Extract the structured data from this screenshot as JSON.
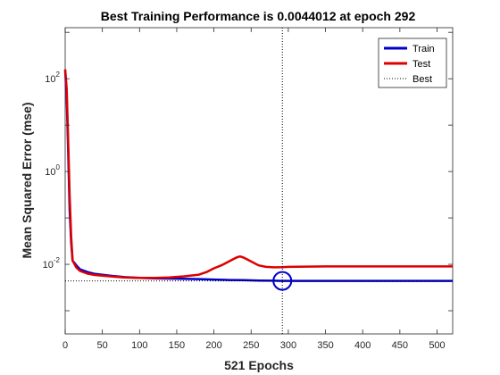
{
  "chart_data": {
    "type": "line",
    "title": "Best Training Performance is 0.0044012 at epoch 292",
    "xlabel": "521 Epochs",
    "ylabel": "Mean Squared Error  (mse)",
    "xlim": [
      0,
      521
    ],
    "ylim_log10": [
      -3.5,
      3.1
    ],
    "y_scale": "log",
    "grid": false,
    "legend_position": "top-right",
    "x_ticks": [
      0,
      50,
      100,
      150,
      200,
      250,
      300,
      350,
      400,
      450,
      500
    ],
    "y_ticks": [
      {
        "base": "10",
        "exp": "-2",
        "log": -2
      },
      {
        "base": "10",
        "exp": "0",
        "log": 0
      },
      {
        "base": "10",
        "exp": "2",
        "log": 2
      }
    ],
    "best": {
      "epoch": 292,
      "value": 0.0044012
    },
    "series": [
      {
        "name": "Train",
        "color": "#0000cc",
        "x": [
          0,
          2,
          4,
          6,
          8,
          10,
          15,
          20,
          30,
          40,
          60,
          80,
          100,
          120,
          150,
          180,
          200,
          220,
          240,
          260,
          280,
          292,
          300,
          350,
          400,
          450,
          521
        ],
        "y": [
          150,
          40,
          3,
          0.15,
          0.03,
          0.012,
          0.0095,
          0.0078,
          0.0068,
          0.0062,
          0.0057,
          0.0053,
          0.0051,
          0.005,
          0.0049,
          0.0048,
          0.0047,
          0.0046,
          0.00455,
          0.00448,
          0.00443,
          0.0044,
          0.0044,
          0.0044,
          0.0044,
          0.0044,
          0.0044
        ]
      },
      {
        "name": "Test",
        "color": "#dd0000",
        "x": [
          0,
          2,
          4,
          6,
          8,
          10,
          15,
          20,
          30,
          40,
          60,
          80,
          100,
          120,
          140,
          160,
          180,
          190,
          200,
          210,
          220,
          230,
          235,
          240,
          250,
          260,
          270,
          280,
          292,
          300,
          350,
          400,
          450,
          521
        ],
        "y": [
          160,
          60,
          5,
          0.3,
          0.04,
          0.012,
          0.0085,
          0.0072,
          0.0063,
          0.0059,
          0.0055,
          0.0052,
          0.0051,
          0.0051,
          0.0052,
          0.0055,
          0.006,
          0.0068,
          0.0082,
          0.0095,
          0.0115,
          0.014,
          0.0148,
          0.014,
          0.0115,
          0.0095,
          0.0088,
          0.0086,
          0.0087,
          0.0088,
          0.009,
          0.009,
          0.009,
          0.009
        ]
      },
      {
        "name": "Best",
        "color": "#000000"
      }
    ]
  }
}
